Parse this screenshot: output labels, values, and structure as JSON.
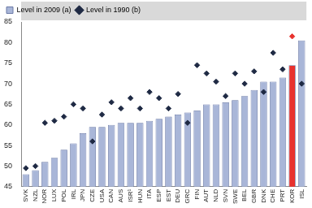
{
  "chart_data": {
    "type": "bar",
    "categories": [
      "SVK",
      "NZL",
      "NOR",
      "LUX",
      "POL",
      "IRL",
      "JPN",
      "CZE",
      "USA",
      "CAN",
      "AUS",
      "ISR¹",
      "HUN",
      "ITA",
      "ESP",
      "EST",
      "DEU",
      "GRC",
      "FIN",
      "AUT",
      "NLD",
      "SVN",
      "SWE",
      "BEL",
      "GBR",
      "DNK",
      "CHE",
      "PRT",
      "KOR",
      "ISL"
    ],
    "series": [
      {
        "name": "Level in 2009 (a)",
        "type": "bar",
        "color": "#a9b6d8",
        "colors": [
          "#a9b6d8",
          "#a9b6d8",
          "#a9b6d8",
          "#a9b6d8",
          "#a9b6d8",
          "#a9b6d8",
          "#a9b6d8",
          "#a9b6d8",
          "#a9b6d8",
          "#a9b6d8",
          "#a9b6d8",
          "#a9b6d8",
          "#a9b6d8",
          "#a9b6d8",
          "#a9b6d8",
          "#a9b6d8",
          "#a9b6d8",
          "#a9b6d8",
          "#a9b6d8",
          "#a9b6d8",
          "#a9b6d8",
          "#a9b6d8",
          "#a9b6d8",
          "#a9b6d8",
          "#a9b6d8",
          "#a9b6d8",
          "#a9b6d8",
          "#a9b6d8",
          "#e8322e",
          "#a9b6d8"
        ],
        "values": [
          48,
          49,
          51,
          52,
          54,
          55.5,
          58,
          59.5,
          59.5,
          60,
          60.5,
          60.5,
          60.5,
          61,
          61.5,
          62,
          62.5,
          63,
          63.5,
          65,
          65,
          65.5,
          66,
          67,
          68.5,
          70.5,
          70.5,
          71.5,
          74.5,
          80.5
        ]
      },
      {
        "name": "Level in 1990 (b)",
        "type": "line",
        "marker": "diamond",
        "line_style": "none",
        "color": "#1f2a44",
        "colors": [
          "#1f2a44",
          "#1f2a44",
          "#1f2a44",
          "#1f2a44",
          "#1f2a44",
          "#1f2a44",
          "#1f2a44",
          "#1f2a44",
          "#1f2a44",
          "#1f2a44",
          "#1f2a44",
          "#1f2a44",
          "#1f2a44",
          "#1f2a44",
          "#1f2a44",
          "#1f2a44",
          "#1f2a44",
          "#1f2a44",
          "#1f2a44",
          "#1f2a44",
          "#1f2a44",
          "#1f2a44",
          "#1f2a44",
          "#1f2a44",
          "#1f2a44",
          "#1f2a44",
          "#1f2a44",
          "#1f2a44",
          "#e8322e",
          "#1f2a44"
        ],
        "values": [
          49.5,
          50,
          60.5,
          61,
          62,
          65,
          64,
          56,
          62.5,
          65.5,
          64,
          66.5,
          64,
          68,
          66.5,
          64,
          67.5,
          60.5,
          74.5,
          72.5,
          70.5,
          67,
          72.5,
          70,
          73,
          68,
          77.5,
          73.5,
          81.5,
          70
        ]
      }
    ],
    "ylim": [
      45,
      85
    ],
    "yticks": [
      45,
      50,
      55,
      60,
      65,
      70,
      75,
      80,
      85
    ],
    "grid": false,
    "legend": "top"
  }
}
